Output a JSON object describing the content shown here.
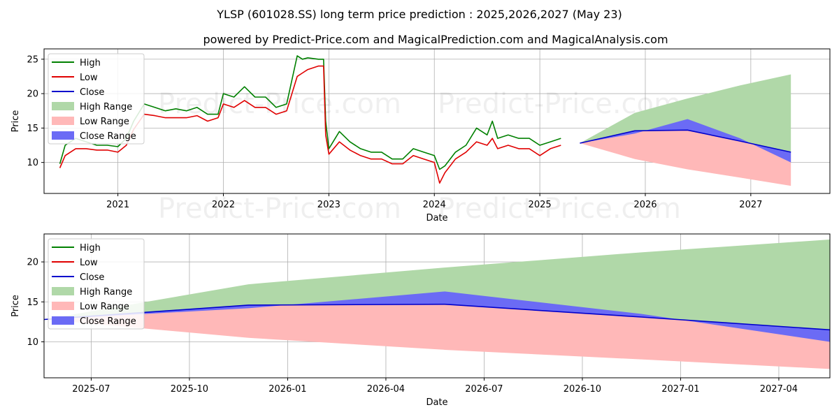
{
  "title": "YLSP (601028.SS) long term price prediction : 2025,2026,2027 (May 23)",
  "subtitle": "powered by Predict-Price.com and MagicalPrediction.com and MagicalAnalysis.com",
  "watermark": "Predict-Price.com",
  "colors": {
    "high": "#008000",
    "low": "#e00000",
    "close": "#0000cc",
    "high_range": "#b0d8a8",
    "low_range": "#ffb8b8",
    "close_range": "#6b6bf5",
    "grid": "#b0b0b0"
  },
  "legend": [
    "High",
    "Low",
    "Close",
    "High Range",
    "Low Range",
    "Close Range"
  ],
  "chart_data": [
    {
      "type": "line",
      "xlabel": "Date",
      "ylabel": "Price",
      "xlim": [
        2020.3,
        2027.75
      ],
      "ylim": [
        5.5,
        26.5
      ],
      "xticks": [
        {
          "v": 2021,
          "label": "2021"
        },
        {
          "v": 2022,
          "label": "2022"
        },
        {
          "v": 2023,
          "label": "2023"
        },
        {
          "v": 2024,
          "label": "2024"
        },
        {
          "v": 2025,
          "label": "2025"
        },
        {
          "v": 2026,
          "label": "2026"
        },
        {
          "v": 2027,
          "label": "2027"
        }
      ],
      "yticks": [
        10,
        15,
        20,
        25
      ],
      "legend_position": "upper-left",
      "grid": true,
      "series": [
        {
          "name": "High",
          "x": [
            2020.45,
            2020.5,
            2020.6,
            2020.7,
            2020.8,
            2020.9,
            2021.0,
            2021.08,
            2021.15,
            2021.25,
            2021.35,
            2021.45,
            2021.55,
            2021.65,
            2021.75,
            2021.85,
            2021.95,
            2022.0,
            2022.1,
            2022.2,
            2022.3,
            2022.4,
            2022.5,
            2022.6,
            2022.7,
            2022.75,
            2022.8,
            2022.9,
            2022.95,
            2022.97,
            2023.0,
            2023.1,
            2023.2,
            2023.3,
            2023.4,
            2023.5,
            2023.6,
            2023.7,
            2023.8,
            2023.9,
            2024.0,
            2024.05,
            2024.1,
            2024.2,
            2024.3,
            2024.4,
            2024.5,
            2024.55,
            2024.6,
            2024.7,
            2024.8,
            2024.9,
            2025.0,
            2025.1,
            2025.2
          ],
          "values": [
            9.8,
            12.5,
            13.5,
            13.0,
            12.5,
            12.5,
            12.3,
            13.5,
            16.0,
            18.5,
            18.0,
            17.5,
            17.8,
            17.5,
            18.0,
            17.0,
            17.0,
            20.0,
            19.5,
            21.0,
            19.5,
            19.5,
            18.0,
            18.5,
            25.5,
            25.0,
            25.2,
            25.0,
            25.0,
            16.0,
            12.0,
            14.5,
            13.0,
            12.0,
            11.5,
            11.5,
            10.5,
            10.5,
            12.0,
            11.5,
            11.0,
            9.0,
            9.5,
            11.5,
            12.5,
            15.0,
            14.0,
            16.0,
            13.5,
            14.0,
            13.5,
            13.5,
            12.5,
            13.0,
            13.5
          ]
        },
        {
          "name": "Low",
          "x": [
            2020.45,
            2020.5,
            2020.6,
            2020.7,
            2020.8,
            2020.9,
            2021.0,
            2021.08,
            2021.15,
            2021.25,
            2021.35,
            2021.45,
            2021.55,
            2021.65,
            2021.75,
            2021.85,
            2021.95,
            2022.0,
            2022.1,
            2022.2,
            2022.3,
            2022.4,
            2022.5,
            2022.6,
            2022.7,
            2022.75,
            2022.8,
            2022.9,
            2022.95,
            2022.97,
            2023.0,
            2023.1,
            2023.2,
            2023.3,
            2023.4,
            2023.5,
            2023.6,
            2023.7,
            2023.8,
            2023.9,
            2024.0,
            2024.05,
            2024.1,
            2024.2,
            2024.3,
            2024.4,
            2024.5,
            2024.55,
            2024.6,
            2024.7,
            2024.8,
            2024.9,
            2025.0,
            2025.1,
            2025.2
          ],
          "values": [
            9.2,
            11.0,
            12.0,
            12.0,
            11.8,
            11.8,
            11.5,
            12.5,
            14.8,
            17.0,
            16.8,
            16.5,
            16.5,
            16.5,
            16.8,
            16.0,
            16.5,
            18.5,
            18.0,
            19.0,
            18.0,
            18.0,
            17.0,
            17.5,
            22.5,
            23.0,
            23.5,
            24.0,
            24.0,
            14.0,
            11.2,
            13.0,
            11.8,
            11.0,
            10.5,
            10.5,
            9.8,
            9.8,
            11.0,
            10.5,
            10.0,
            7.0,
            8.5,
            10.5,
            11.5,
            13.0,
            12.5,
            13.5,
            12.0,
            12.5,
            12.0,
            12.0,
            11.0,
            12.0,
            12.5
          ]
        },
        {
          "name": "Close",
          "x": [
            2025.38,
            2025.9,
            2026.4,
            2026.9,
            2027.38
          ],
          "values": [
            12.8,
            14.6,
            14.7,
            13.1,
            11.5
          ]
        },
        {
          "name": "High Range",
          "x": [
            2025.38,
            2025.9,
            2026.4,
            2026.9,
            2027.38
          ],
          "values": [
            12.8,
            17.2,
            19.3,
            21.2,
            22.8
          ]
        },
        {
          "name": "Low Range",
          "x": [
            2025.38,
            2025.9,
            2026.4,
            2026.9,
            2027.38
          ],
          "values": [
            12.8,
            10.5,
            9.0,
            7.8,
            6.6
          ]
        },
        {
          "name": "Close Range",
          "x": [
            2025.38,
            2025.9,
            2026.4,
            2026.9,
            2027.38
          ],
          "values": [
            12.8,
            14.2,
            16.3,
            13.5,
            10.0
          ]
        }
      ]
    },
    {
      "type": "line",
      "xlabel": "Date",
      "ylabel": "Price",
      "xlim": [
        2025.38,
        2027.38
      ],
      "ylim": [
        5.5,
        23.5
      ],
      "xticks": [
        {
          "v": 2025.5,
          "label": "2025-07"
        },
        {
          "v": 2025.75,
          "label": "2025-10"
        },
        {
          "v": 2026.0,
          "label": "2026-01"
        },
        {
          "v": 2026.25,
          "label": "2026-04"
        },
        {
          "v": 2026.5,
          "label": "2026-07"
        },
        {
          "v": 2026.75,
          "label": "2026-10"
        },
        {
          "v": 2027.0,
          "label": "2027-01"
        },
        {
          "v": 2027.25,
          "label": "2027-04"
        }
      ],
      "yticks": [
        10,
        15,
        20
      ],
      "legend_position": "upper-left",
      "grid": true,
      "series": [
        {
          "name": "Close",
          "x": [
            2025.38,
            2025.9,
            2026.4,
            2026.9,
            2027.38
          ],
          "values": [
            12.8,
            14.6,
            14.7,
            13.1,
            11.5
          ]
        },
        {
          "name": "High Range",
          "x": [
            2025.38,
            2025.9,
            2026.4,
            2026.9,
            2027.38
          ],
          "values": [
            12.8,
            17.2,
            19.3,
            21.2,
            22.8
          ]
        },
        {
          "name": "Low Range",
          "x": [
            2025.38,
            2025.9,
            2026.4,
            2026.9,
            2027.38
          ],
          "values": [
            12.8,
            10.5,
            9.0,
            7.8,
            6.6
          ]
        },
        {
          "name": "Close Range",
          "x": [
            2025.38,
            2025.9,
            2026.4,
            2026.9,
            2027.38
          ],
          "values": [
            12.8,
            14.2,
            16.3,
            13.5,
            10.0
          ]
        }
      ]
    }
  ]
}
